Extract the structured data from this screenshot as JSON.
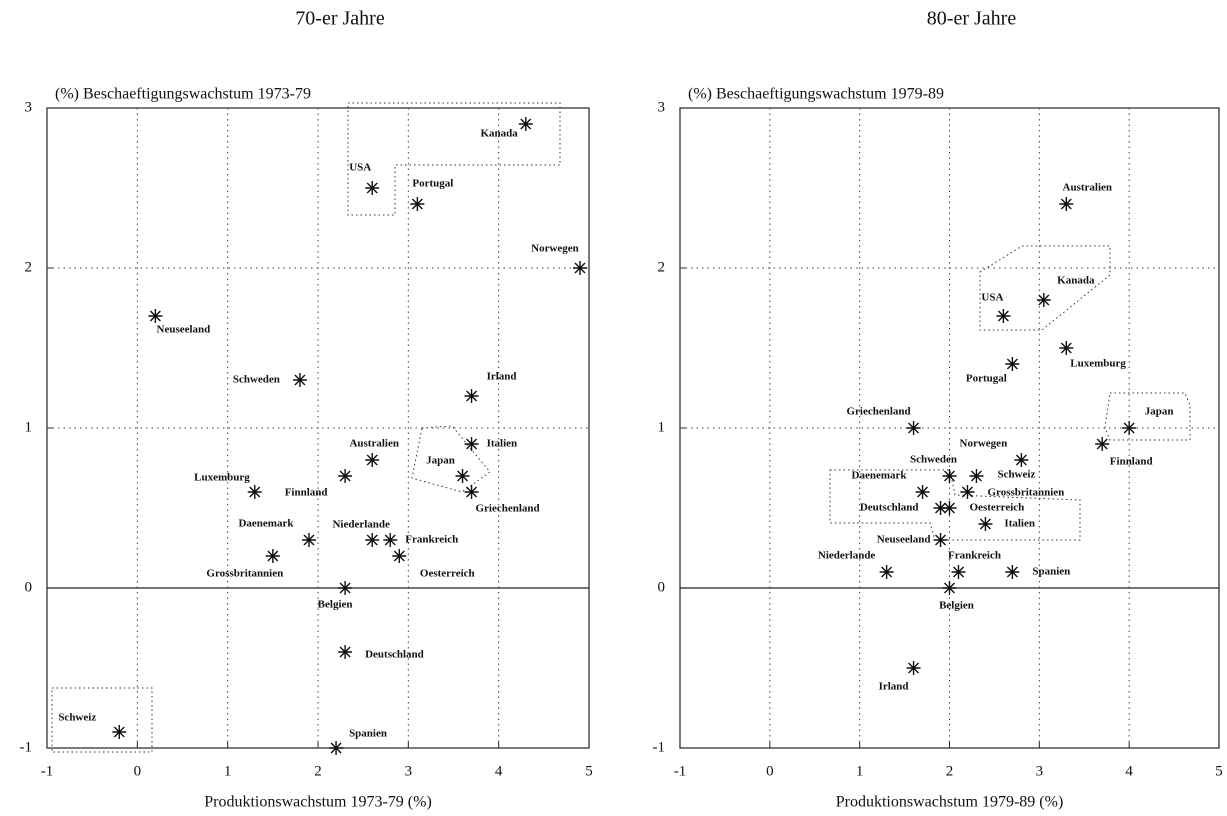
{
  "chart_data": [
    {
      "type": "scatter",
      "title": "70-er Jahre",
      "ylabel": "(%) Beschaeftigungswachstum  1973-79",
      "xlabel": "Produktionswachstum 1973-79 (%)",
      "labels": [
        "Kanada",
        "USA",
        "Portugal",
        "Norwegen",
        "Neuseeland",
        "Schweden",
        "Irland",
        "Italien",
        "Australien",
        "Japan",
        "Griechenland",
        "Finnland",
        "Luxemburg",
        "Daenemark",
        "Niederlande",
        "Frankreich",
        "Oesterreich",
        "Grossbritannien",
        "Belgien",
        "Deutschland",
        "Spanien",
        "Schweiz"
      ],
      "x": [
        4.3,
        2.6,
        3.1,
        4.9,
        0.2,
        1.8,
        3.7,
        3.7,
        2.6,
        3.6,
        3.7,
        2.3,
        1.3,
        1.9,
        2.6,
        2.8,
        2.9,
        1.5,
        2.3,
        2.3,
        2.2,
        -0.2
      ],
      "y": [
        2.9,
        2.5,
        2.4,
        2.0,
        1.7,
        1.3,
        1.2,
        0.9,
        0.8,
        0.7,
        0.6,
        0.7,
        0.6,
        0.3,
        0.3,
        0.3,
        0.2,
        0.2,
        0.0,
        -0.4,
        -1.0,
        -0.9
      ],
      "xlim": [
        -1,
        5
      ],
      "ylim": [
        -1,
        3
      ],
      "xticks": [
        -1,
        0,
        1,
        2,
        3,
        4,
        5
      ],
      "yticks": [
        -1,
        0,
        1,
        2,
        3
      ],
      "grid": true
    },
    {
      "type": "scatter",
      "title": "80-er Jahre",
      "ylabel": "(%) Beschaeftigungswachstum  1979-89",
      "xlabel": "Produktionswachstum 1979-89 (%)",
      "labels": [
        "Australien",
        "Kanada",
        "USA",
        "Luxemburg",
        "Portugal",
        "Griechenland",
        "Japan",
        "Finnland",
        "Norwegen",
        "Schweden",
        "Schweiz",
        "Daenemark",
        "Grossbritannien",
        "Deutschland",
        "Oesterreich",
        "Italien",
        "Neuseeland",
        "Niederlande",
        "Frankreich",
        "Spanien",
        "Belgien",
        "Irland"
      ],
      "x": [
        3.3,
        3.05,
        2.6,
        3.3,
        2.7,
        1.6,
        4.0,
        3.7,
        2.8,
        2.0,
        2.3,
        1.7,
        2.2,
        1.9,
        2.0,
        2.4,
        1.9,
        1.3,
        2.1,
        2.7,
        2.0,
        1.6
      ],
      "y": [
        2.4,
        1.8,
        1.7,
        1.5,
        1.4,
        1.0,
        1.0,
        0.9,
        0.8,
        0.7,
        0.7,
        0.6,
        0.6,
        0.5,
        0.5,
        0.4,
        0.3,
        0.1,
        0.1,
        0.1,
        0.0,
        -0.5
      ],
      "xlim": [
        -1,
        5
      ],
      "ylim": [
        -1,
        3
      ],
      "xticks": [
        -1,
        0,
        1,
        2,
        3,
        4,
        5
      ],
      "yticks": [
        -1,
        0,
        1,
        2,
        3
      ],
      "grid": true
    }
  ]
}
